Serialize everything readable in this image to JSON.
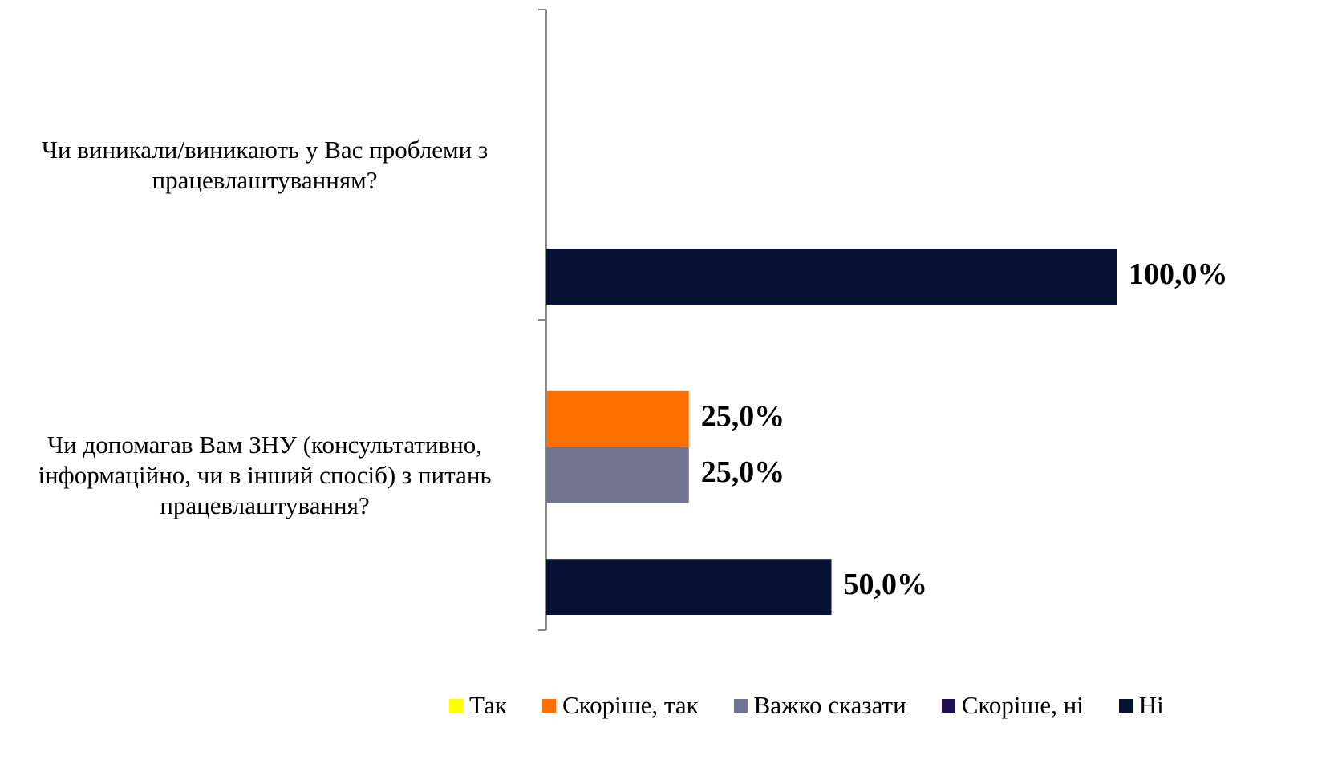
{
  "chart_data": {
    "type": "bar",
    "orientation": "horizontal",
    "categories": [
      "Чи виникали/виникають у Вас  проблеми з працевлаштуванням?",
      "Чи допомагав Вам ЗНУ (консультативно, інформаційно, чи в інший спосіб) з питань працевлаштування?"
    ],
    "series": [
      {
        "name": "Так",
        "color": "#ffff00",
        "values": [
          null,
          null
        ],
        "value_labels": [
          null,
          null
        ]
      },
      {
        "name": "Скоріше, так",
        "color": "#ff6f00",
        "values": [
          null,
          25
        ],
        "value_labels": [
          null,
          "25,0%"
        ]
      },
      {
        "name": "Важко сказати",
        "color": "#707490",
        "values": [
          null,
          25
        ],
        "value_labels": [
          null,
          "25,0%"
        ]
      },
      {
        "name": "Скоріше, ні",
        "color": "#201050",
        "values": [
          null,
          null
        ],
        "value_labels": [
          null,
          null
        ]
      },
      {
        "name": "Ні",
        "color": "#061133",
        "values": [
          100,
          50
        ],
        "value_labels": [
          "100,0%",
          "50,0%"
        ]
      }
    ],
    "xlim": [
      0,
      100
    ],
    "legend": "bottom"
  }
}
